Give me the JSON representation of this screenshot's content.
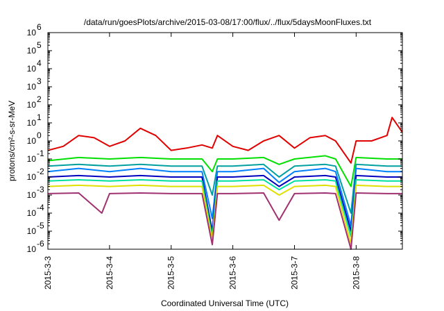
{
  "chart_data": {
    "type": "line",
    "title": "/data/run/goesPlots/archive/2015-03-08/17:00/flux/../flux/5daysMoonFluxes.txt",
    "xlabel": "Coordinated Universal Time (UTC)",
    "ylabel": "protons/cm²-s-sr-MeV",
    "yscale": "log",
    "ylim": [
      1e-06,
      1000000.0
    ],
    "xlim": [
      "2015-03-03",
      "2015-03-08 18:00"
    ],
    "xticks": [
      "2015-3-3",
      "2015-3-4",
      "2015-3-5",
      "2015-3-6",
      "2015-3-7",
      "2015-3-8"
    ],
    "yticks": [
      "10-6",
      "10-5",
      "10-4",
      "10-3",
      "10-2",
      "10-1",
      "100",
      "101",
      "102",
      "103",
      "104",
      "105",
      "106"
    ],
    "grid": false,
    "legend": "none",
    "series": [
      {
        "color": "#e00000",
        "x": [
          "03-03 00:00",
          "03-03 06:00",
          "03-03 12:00",
          "03-03 18:00",
          "03-04 00:00",
          "03-04 06:00",
          "03-04 12:00",
          "03-04 18:00",
          "03-05 00:00",
          "03-05 06:00",
          "03-05 12:00",
          "03-05 16:00",
          "03-05 18:00",
          "03-06 00:00",
          "03-06 06:00",
          "03-06 12:00",
          "03-06 18:00",
          "03-07 00:00",
          "03-07 06:00",
          "03-07 12:00",
          "03-07 16:00",
          "03-07 22:00",
          "03-08 00:00",
          "03-08 06:00",
          "03-08 12:00",
          "03-08 14:00",
          "03-08 18:00"
        ],
        "y": [
          0.3,
          0.5,
          2.0,
          1.5,
          0.5,
          1.0,
          5.0,
          2.0,
          0.3,
          0.4,
          0.6,
          0.4,
          2.0,
          0.5,
          0.3,
          1.0,
          2.0,
          0.4,
          1.5,
          2.0,
          1.0,
          0.06,
          1.0,
          1.0,
          2.0,
          20,
          3.0
        ]
      },
      {
        "color": "#00e000",
        "x": [
          "03-03 00:00",
          "03-03 12:00",
          "03-04 00:00",
          "03-04 12:00",
          "03-05 00:00",
          "03-05 12:00",
          "03-05 16:00",
          "03-05 18:00",
          "03-06 00:00",
          "03-06 12:00",
          "03-06 18:00",
          "03-07 00:00",
          "03-07 12:00",
          "03-07 16:00",
          "03-07 22:00",
          "03-08 00:00",
          "03-08 12:00",
          "03-08 18:00"
        ],
        "y": [
          0.08,
          0.12,
          0.1,
          0.12,
          0.1,
          0.1,
          0.02,
          0.1,
          0.1,
          0.12,
          0.05,
          0.1,
          0.15,
          0.1,
          0.003,
          0.12,
          0.1,
          0.1
        ]
      },
      {
        "color": "#00a0a0",
        "x": [
          "03-03 00:00",
          "03-03 12:00",
          "03-04 00:00",
          "03-04 12:00",
          "03-05 00:00",
          "03-05 12:00",
          "03-05 16:00",
          "03-05 18:00",
          "03-06 00:00",
          "03-06 12:00",
          "03-06 18:00",
          "03-07 00:00",
          "03-07 12:00",
          "03-07 16:00",
          "03-07 22:00",
          "03-08 00:00",
          "03-08 12:00",
          "03-08 18:00"
        ],
        "y": [
          0.04,
          0.05,
          0.04,
          0.05,
          0.04,
          0.04,
          0.001,
          0.04,
          0.04,
          0.05,
          0.01,
          0.04,
          0.05,
          0.04,
          0.0001,
          0.05,
          0.04,
          0.04
        ]
      },
      {
        "color": "#0080ff",
        "x": [
          "03-03 00:00",
          "03-03 12:00",
          "03-04 00:00",
          "03-04 12:00",
          "03-05 00:00",
          "03-05 12:00",
          "03-05 16:00",
          "03-05 18:00",
          "03-06 00:00",
          "03-06 12:00",
          "03-06 18:00",
          "03-07 00:00",
          "03-07 12:00",
          "03-07 16:00",
          "03-07 22:00",
          "03-08 00:00",
          "03-08 12:00",
          "03-08 18:00"
        ],
        "y": [
          0.02,
          0.03,
          0.02,
          0.03,
          0.02,
          0.02,
          5e-05,
          0.02,
          0.02,
          0.03,
          0.005,
          0.02,
          0.03,
          0.02,
          2e-05,
          0.03,
          0.02,
          0.02
        ]
      },
      {
        "color": "#0000c0",
        "x": [
          "03-03 00:00",
          "03-03 12:00",
          "03-04 00:00",
          "03-04 12:00",
          "03-05 00:00",
          "03-05 12:00",
          "03-05 16:00",
          "03-05 18:00",
          "03-06 00:00",
          "03-06 12:00",
          "03-06 18:00",
          "03-07 00:00",
          "03-07 12:00",
          "03-07 16:00",
          "03-07 22:00",
          "03-08 00:00",
          "03-08 12:00",
          "03-08 18:00"
        ],
        "y": [
          0.01,
          0.012,
          0.01,
          0.012,
          0.01,
          0.01,
          1e-05,
          0.01,
          0.01,
          0.012,
          0.003,
          0.01,
          0.012,
          0.01,
          1e-05,
          0.012,
          0.01,
          0.01
        ]
      },
      {
        "color": "#00e0a0",
        "x": [
          "03-03 00:00",
          "03-03 12:00",
          "03-04 00:00",
          "03-04 12:00",
          "03-05 00:00",
          "03-05 12:00",
          "03-05 16:00",
          "03-05 18:00",
          "03-06 00:00",
          "03-06 12:00",
          "03-06 18:00",
          "03-07 00:00",
          "03-07 12:00",
          "03-07 16:00",
          "03-07 22:00",
          "03-08 00:00",
          "03-08 12:00",
          "03-08 18:00"
        ],
        "y": [
          0.006,
          0.007,
          0.006,
          0.007,
          0.006,
          0.006,
          5e-06,
          0.006,
          0.006,
          0.007,
          0.002,
          0.006,
          0.007,
          0.006,
          5e-06,
          0.007,
          0.006,
          0.006
        ]
      },
      {
        "color": "#e0e000",
        "x": [
          "03-03 00:00",
          "03-03 12:00",
          "03-04 00:00",
          "03-04 12:00",
          "03-05 00:00",
          "03-05 12:00",
          "03-05 16:00",
          "03-05 18:00",
          "03-06 00:00",
          "03-06 12:00",
          "03-06 18:00",
          "03-07 00:00",
          "03-07 12:00",
          "03-07 16:00",
          "03-07 22:00",
          "03-08 00:00",
          "03-08 12:00",
          "03-08 18:00"
        ],
        "y": [
          0.003,
          0.0035,
          0.003,
          0.0035,
          0.003,
          0.003,
          3e-06,
          0.003,
          0.003,
          0.0035,
          0.001,
          0.003,
          0.0035,
          0.003,
          2e-06,
          0.0035,
          0.003,
          0.003
        ]
      },
      {
        "color": "#a03070",
        "x": [
          "03-03 00:00",
          "03-03 12:00",
          "03-03 21:00",
          "03-04 00:00",
          "03-04 12:00",
          "03-05 00:00",
          "03-05 12:00",
          "03-05 16:00",
          "03-05 18:00",
          "03-06 00:00",
          "03-06 12:00",
          "03-06 18:00",
          "03-07 00:00",
          "03-07 12:00",
          "03-07 16:00",
          "03-07 22:00",
          "03-08 00:00",
          "03-08 12:00",
          "03-08 18:00"
        ],
        "y": [
          0.0012,
          0.0013,
          0.0001,
          0.0012,
          0.0013,
          0.0012,
          0.0012,
          1.8e-06,
          0.0012,
          0.0012,
          0.0013,
          4e-05,
          0.0012,
          0.0013,
          0.0012,
          8e-07,
          0.0013,
          0.0012,
          0.0012
        ]
      }
    ]
  }
}
